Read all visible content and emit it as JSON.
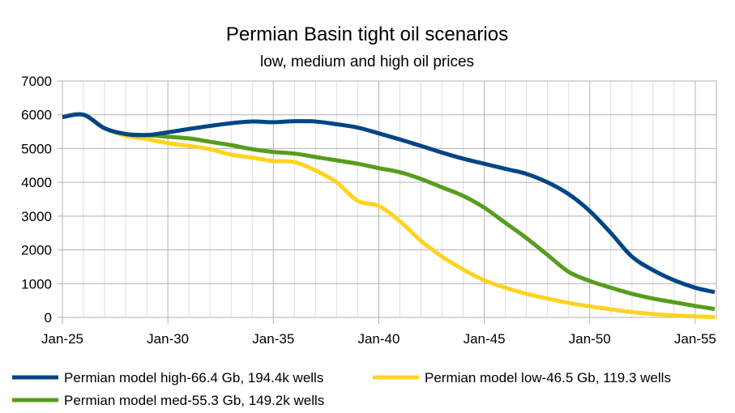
{
  "chart_data": {
    "type": "line",
    "title": "Permian Basin tight oil scenarios",
    "subtitle": "low, medium and high oil prices",
    "xlabel": "",
    "ylabel": "",
    "ylim": [
      0,
      7000
    ],
    "yticks": [
      0,
      1000,
      2000,
      3000,
      4000,
      5000,
      6000,
      7000
    ],
    "ytick_labels": [
      "0",
      "1000",
      "2000",
      "3000",
      "4000",
      "5000",
      "6000",
      "7000"
    ],
    "xlim": [
      2025,
      2056
    ],
    "xticks": [
      2025,
      2030,
      2035,
      2040,
      2045,
      2050,
      2055
    ],
    "xtick_labels": [
      "Jan-25",
      "Jan-30",
      "Jan-35",
      "Jan-40",
      "Jan-45",
      "Jan-50",
      "Jan-55"
    ],
    "grid": true,
    "legend_position": "bottom",
    "x": [
      2025,
      2026,
      2027,
      2028,
      2029,
      2030,
      2031,
      2032,
      2033,
      2034,
      2035,
      2036,
      2037,
      2038,
      2039,
      2040,
      2041,
      2042,
      2043,
      2044,
      2045,
      2046,
      2047,
      2048,
      2049,
      2050,
      2051,
      2052,
      2053,
      2054,
      2055,
      2056
    ],
    "series": [
      {
        "name": "Permian model high-66.4 Gb, 194.4k wells",
        "color": "#004586",
        "values": [
          5930,
          6000,
          5600,
          5430,
          5400,
          5480,
          5580,
          5670,
          5750,
          5800,
          5780,
          5810,
          5800,
          5720,
          5620,
          5450,
          5270,
          5080,
          4880,
          4700,
          4550,
          4400,
          4250,
          4000,
          3650,
          3150,
          2500,
          1800,
          1400,
          1100,
          880,
          750
        ]
      },
      {
        "name": "Permian model low-46.5 Gb, 119.3 wells",
        "color": "#ffd320",
        "values": [
          5930,
          6000,
          5600,
          5380,
          5280,
          5160,
          5080,
          4980,
          4820,
          4730,
          4630,
          4600,
          4350,
          4000,
          3450,
          3300,
          2850,
          2270,
          1800,
          1420,
          1100,
          880,
          700,
          560,
          430,
          330,
          240,
          160,
          100,
          60,
          30,
          10
        ]
      },
      {
        "name": "Permian model med-55.3 Gb, 149.2k wells",
        "color": "#579d1c",
        "values": [
          5930,
          6000,
          5600,
          5430,
          5400,
          5350,
          5300,
          5200,
          5100,
          4980,
          4900,
          4850,
          4750,
          4650,
          4550,
          4420,
          4300,
          4100,
          3850,
          3600,
          3250,
          2800,
          2350,
          1850,
          1350,
          1080,
          880,
          700,
          560,
          450,
          340,
          250
        ]
      }
    ]
  }
}
